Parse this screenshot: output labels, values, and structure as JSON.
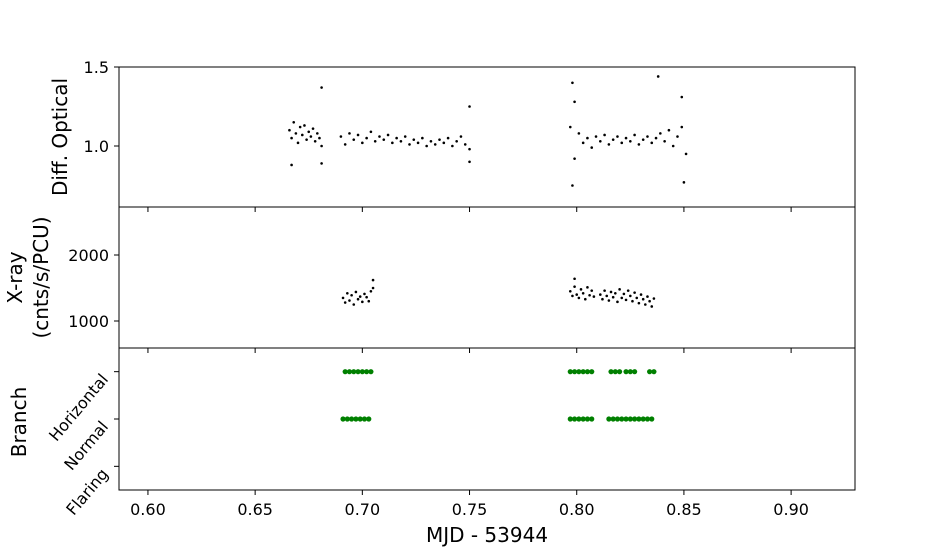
{
  "chart_data": [
    {
      "type": "scatter",
      "ylabel": "Diff. Optical",
      "color": "#000000",
      "xlim": [
        0.5865,
        0.9298
      ],
      "ylim": [
        0.614,
        1.5
      ],
      "yticks": [
        {
          "value": 1.0,
          "label": "1.0"
        },
        {
          "value": 1.5,
          "label": "1.5"
        }
      ],
      "x": [
        0.666,
        0.667,
        0.668,
        0.669,
        0.67,
        0.671,
        0.672,
        0.673,
        0.674,
        0.675,
        0.676,
        0.677,
        0.678,
        0.679,
        0.68,
        0.681,
        0.667,
        0.681,
        0.681,
        0.69,
        0.692,
        0.694,
        0.696,
        0.698,
        0.7,
        0.702,
        0.704,
        0.706,
        0.708,
        0.71,
        0.712,
        0.714,
        0.716,
        0.718,
        0.72,
        0.722,
        0.724,
        0.726,
        0.728,
        0.73,
        0.732,
        0.734,
        0.736,
        0.738,
        0.74,
        0.742,
        0.744,
        0.746,
        0.748,
        0.75,
        0.75,
        0.75,
        0.797,
        0.799,
        0.801,
        0.803,
        0.805,
        0.807,
        0.809,
        0.811,
        0.813,
        0.815,
        0.817,
        0.819,
        0.821,
        0.823,
        0.825,
        0.827,
        0.829,
        0.831,
        0.833,
        0.835,
        0.837,
        0.839,
        0.841,
        0.843,
        0.845,
        0.847,
        0.849,
        0.851,
        0.798,
        0.798,
        0.838,
        0.849,
        0.85,
        0.799
      ],
      "values": [
        1.1,
        1.05,
        1.15,
        1.08,
        1.02,
        1.12,
        1.07,
        1.13,
        1.04,
        1.09,
        1.06,
        1.11,
        1.03,
        1.08,
        1.05,
        1.0,
        0.88,
        1.37,
        0.89,
        1.06,
        1.01,
        1.08,
        1.04,
        1.07,
        1.02,
        1.05,
        1.09,
        1.03,
        1.06,
        1.04,
        1.07,
        1.02,
        1.05,
        1.03,
        1.06,
        1.01,
        1.04,
        1.02,
        1.05,
        1.0,
        1.03,
        1.01,
        1.04,
        1.02,
        1.05,
        1.0,
        1.03,
        1.06,
        1.01,
        0.98,
        1.25,
        0.9,
        1.12,
        0.92,
        1.08,
        1.02,
        1.05,
        0.99,
        1.06,
        1.03,
        1.07,
        1.01,
        1.04,
        1.06,
        1.02,
        1.05,
        1.03,
        1.07,
        1.01,
        1.04,
        1.06,
        1.02,
        1.05,
        1.08,
        1.03,
        1.1,
        1.0,
        1.06,
        1.12,
        0.95,
        1.4,
        0.75,
        1.44,
        1.31,
        0.77,
        1.28
      ]
    },
    {
      "type": "scatter",
      "ylabel": [
        "X-ray",
        "(cnts/s/PCU)"
      ],
      "color": "#000000",
      "xlim": [
        0.5865,
        0.9298
      ],
      "ylim": [
        591,
        2727
      ],
      "yticks": [
        1000,
        2000
      ],
      "x": [
        0.691,
        0.692,
        0.693,
        0.694,
        0.695,
        0.696,
        0.697,
        0.698,
        0.699,
        0.7,
        0.701,
        0.702,
        0.703,
        0.704,
        0.705,
        0.705,
        0.797,
        0.798,
        0.799,
        0.8,
        0.801,
        0.802,
        0.803,
        0.804,
        0.805,
        0.806,
        0.807,
        0.808,
        0.799,
        0.811,
        0.812,
        0.813,
        0.814,
        0.815,
        0.816,
        0.817,
        0.818,
        0.819,
        0.82,
        0.821,
        0.822,
        0.823,
        0.824,
        0.825,
        0.826,
        0.827,
        0.828,
        0.829,
        0.83,
        0.831,
        0.832,
        0.833,
        0.834,
        0.835,
        0.836
      ],
      "values": [
        1350,
        1280,
        1420,
        1310,
        1390,
        1250,
        1440,
        1330,
        1370,
        1290,
        1410,
        1360,
        1300,
        1450,
        1500,
        1620,
        1450,
        1380,
        1520,
        1400,
        1350,
        1480,
        1420,
        1330,
        1510,
        1390,
        1460,
        1370,
        1640,
        1400,
        1330,
        1460,
        1380,
        1310,
        1440,
        1360,
        1420,
        1290,
        1480,
        1350,
        1410,
        1320,
        1460,
        1380,
        1300,
        1430,
        1350,
        1270,
        1400,
        1330,
        1250,
        1370,
        1300,
        1220,
        1340
      ]
    },
    {
      "type": "scatter",
      "ylabel": "Branch",
      "color": "#008000",
      "xlim": [
        0.5865,
        0.9298
      ],
      "ylim": [
        -0.5,
        2.5
      ],
      "yticks": [
        {
          "value": 0,
          "label": "Flaring"
        },
        {
          "value": 1,
          "label": "Normal"
        },
        {
          "value": 2,
          "label": "Horizontal"
        }
      ],
      "xlabel": "MJD - 53944",
      "xticks": [
        {
          "value": 0.6,
          "label": "0.60"
        },
        {
          "value": 0.65,
          "label": "0.65"
        },
        {
          "value": 0.7,
          "label": "0.70"
        },
        {
          "value": 0.75,
          "label": "0.75"
        },
        {
          "value": 0.8,
          "label": "0.80"
        },
        {
          "value": 0.85,
          "label": "0.85"
        },
        {
          "value": 0.9,
          "label": "0.90"
        }
      ],
      "x": [
        0.692,
        0.694,
        0.696,
        0.698,
        0.7,
        0.702,
        0.704,
        0.797,
        0.799,
        0.801,
        0.803,
        0.805,
        0.807,
        0.816,
        0.818,
        0.82,
        0.823,
        0.825,
        0.827,
        0.834,
        0.836,
        0.691,
        0.693,
        0.695,
        0.697,
        0.699,
        0.701,
        0.703,
        0.797,
        0.799,
        0.801,
        0.803,
        0.805,
        0.807,
        0.815,
        0.817,
        0.819,
        0.821,
        0.823,
        0.825,
        0.827,
        0.829,
        0.831,
        0.833,
        0.835
      ],
      "values": [
        2,
        2,
        2,
        2,
        2,
        2,
        2,
        2,
        2,
        2,
        2,
        2,
        2,
        2,
        2,
        2,
        2,
        2,
        2,
        2,
        2,
        1,
        1,
        1,
        1,
        1,
        1,
        1,
        1,
        1,
        1,
        1,
        1,
        1,
        1,
        1,
        1,
        1,
        1,
        1,
        1,
        1,
        1,
        1,
        1
      ]
    }
  ]
}
